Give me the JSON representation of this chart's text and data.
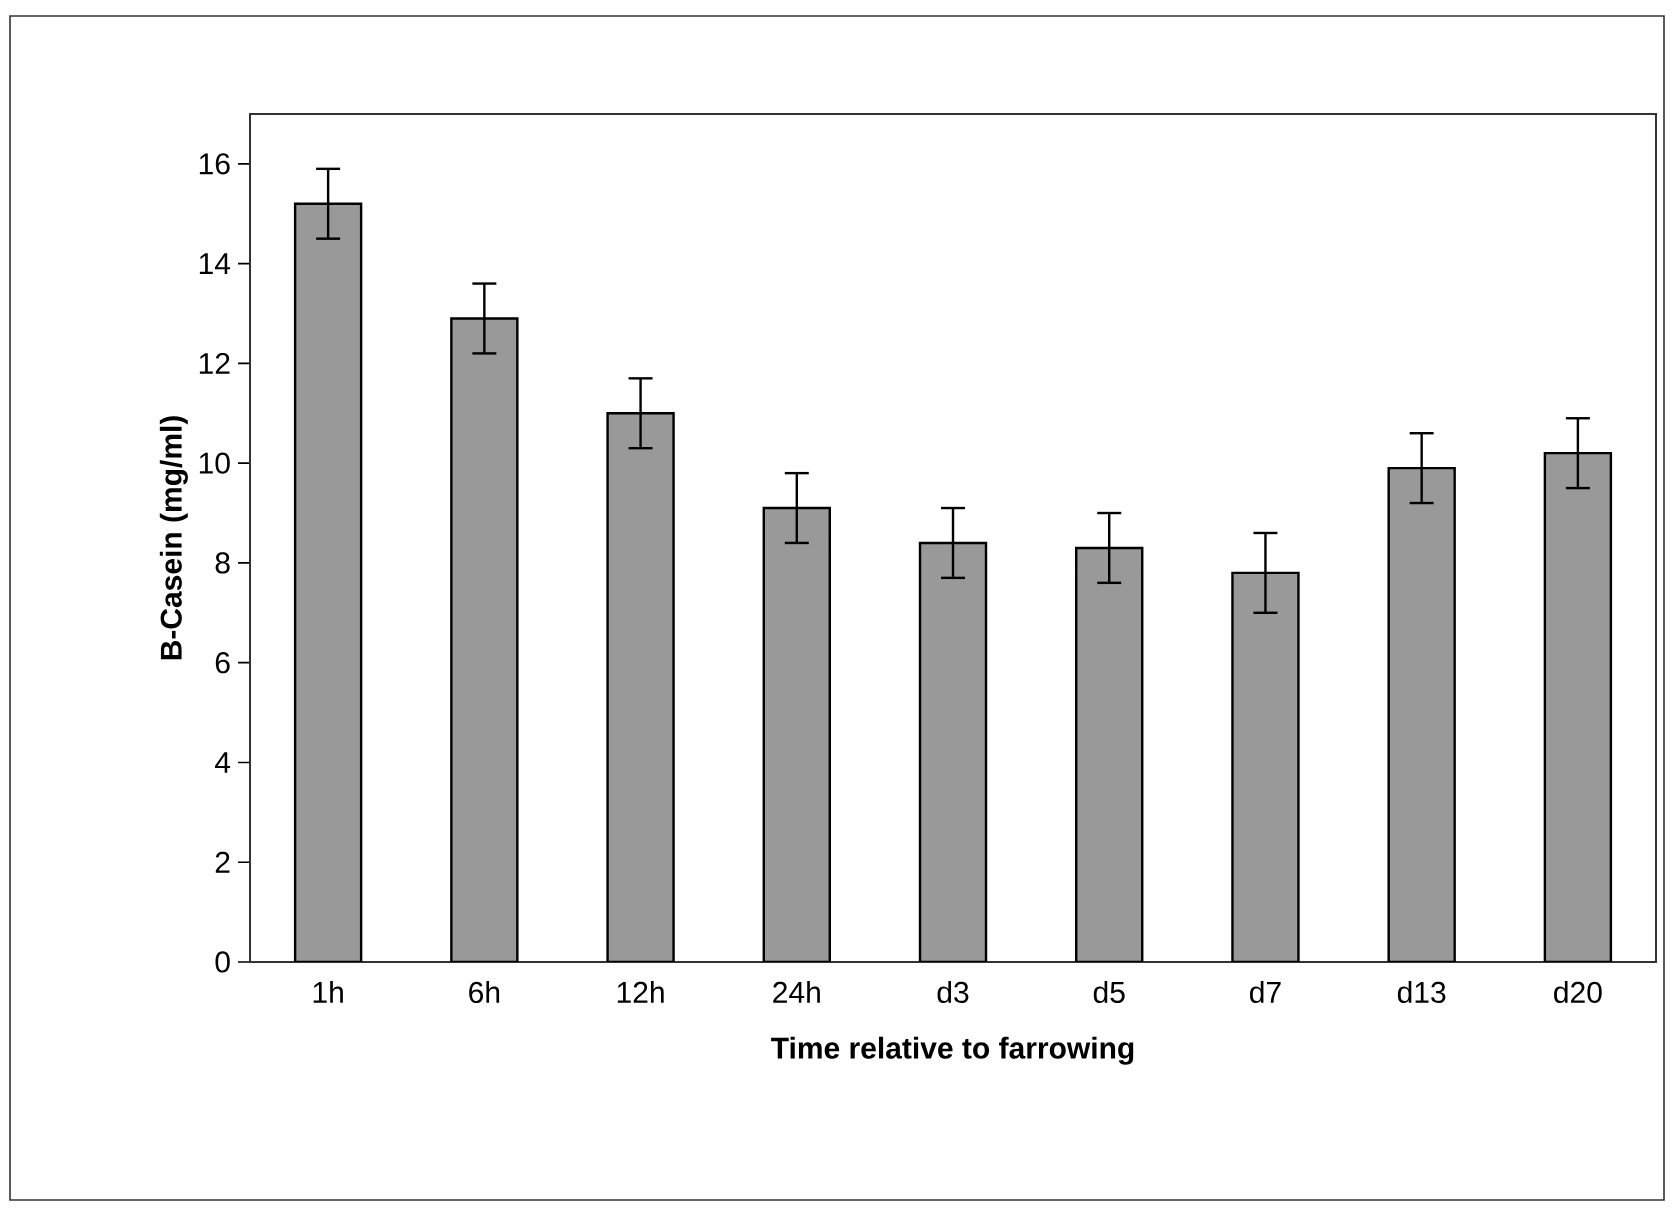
{
  "chart_data": {
    "type": "bar",
    "xlabel": "Time relative to farrowing",
    "ylabel": "B-Casein (mg/ml)",
    "categories": [
      "1h",
      "6h",
      "12h",
      "24h",
      "d3",
      "d5",
      "d7",
      "d13",
      "d20"
    ],
    "values": [
      15.2,
      12.9,
      11.0,
      9.1,
      8.4,
      8.3,
      7.8,
      9.9,
      10.2
    ],
    "errors": [
      0.7,
      0.7,
      0.7,
      0.7,
      0.7,
      0.7,
      0.8,
      0.7,
      0.7
    ],
    "color": "#999999",
    "ylim": [
      0,
      17
    ],
    "yticks": [
      0,
      2,
      4,
      6,
      8,
      10,
      12,
      14,
      16
    ],
    "grid": false
  }
}
